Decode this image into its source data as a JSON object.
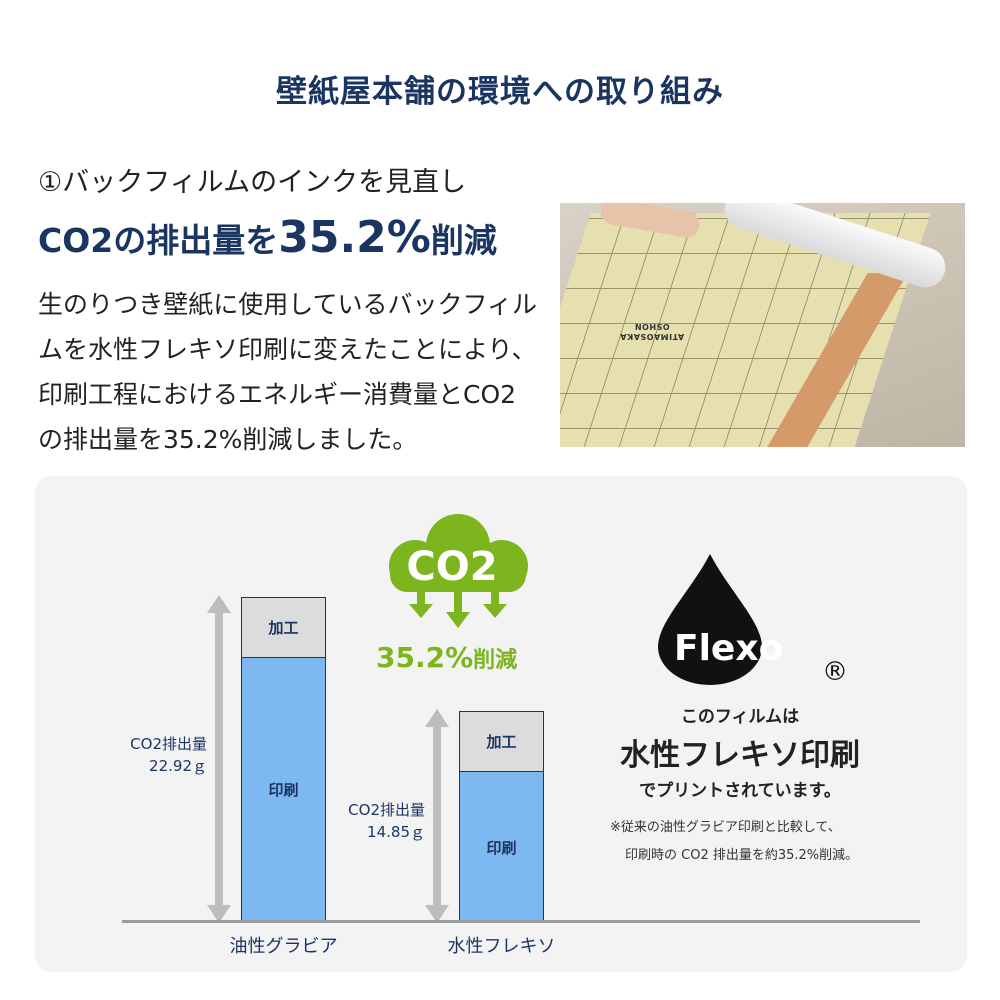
{
  "title": "壁紙屋本舗の環境への取り組み",
  "section": {
    "heading": "①バックフィルムのインクを見直し",
    "headline_prefix": "CO2の排出量を",
    "headline_value": "35.2%",
    "headline_suffix": "削減",
    "body": "生のりつき壁紙に使用しているバックフィルムを水性フレキソ印刷に変えたことにより、印刷工程におけるエネルギー消費量とCO2の排出量を35.2%削減しました。"
  },
  "photo": {
    "label": "ATIMAOSAKA OSHON"
  },
  "badge": {
    "cloud_text": "CO2",
    "reduction_value": "35.2%",
    "reduction_suffix": "削減",
    "colors": {
      "green": "#7cb51e"
    }
  },
  "flexo": {
    "logo_text": "Flexo",
    "registered": "®",
    "line1": "このフィルムは",
    "line2": "水性フレキソ印刷",
    "line3": "でプリントされています。",
    "note1": "※従来の油性グラビア印刷と比較して、",
    "note2": "印刷時の CO2 排出量を約35.2%削減。"
  },
  "chart_data": {
    "type": "bar",
    "stacked": true,
    "categories": [
      "油性グラビア",
      "水性フレキソ"
    ],
    "series": [
      {
        "name": "印刷",
        "values": [
          18.7,
          10.6
        ],
        "color": "#7db9f0"
      },
      {
        "name": "加工",
        "values": [
          4.22,
          4.25
        ],
        "color": "#dcdcdc"
      }
    ],
    "totals": [
      22.92,
      14.85
    ],
    "total_labels": [
      {
        "line1": "CO2排出量",
        "line2": "22.92ｇ"
      },
      {
        "line1": "CO2排出量",
        "line2": "14.85ｇ"
      }
    ],
    "ylim": [
      0,
      22.92
    ],
    "grid": false,
    "axis_color": "#9b9b9b",
    "border_color": "#1b3563"
  }
}
